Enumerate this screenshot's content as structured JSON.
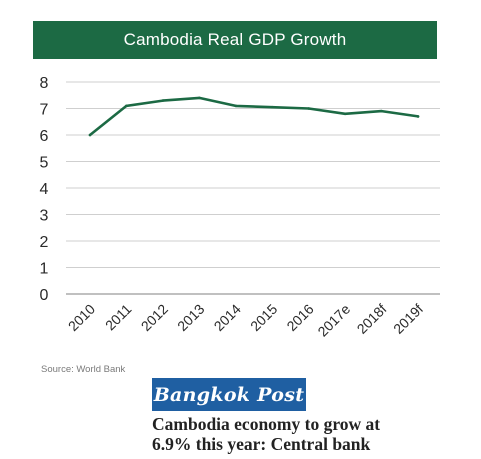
{
  "colors": {
    "title_bar": "#1c6a44",
    "line": "#1c6a44",
    "grid": "#cfcfcf",
    "logo_background": "#1f5fa2"
  },
  "chart_data": {
    "type": "line",
    "title": "Cambodia Real GDP Growth",
    "xlabel": "",
    "ylabel": "",
    "categories": [
      "2010",
      "2011",
      "2012",
      "2013",
      "2014",
      "2015",
      "2016",
      "2017e",
      "2018f",
      "2019f"
    ],
    "series": [
      {
        "values": [
          6.0,
          7.1,
          7.3,
          7.4,
          7.1,
          7.05,
          7.0,
          6.8,
          6.9,
          6.7
        ]
      }
    ],
    "ylim": [
      0,
      8
    ],
    "yticks": [
      "0",
      "1",
      "2",
      "3",
      "4",
      "5",
      "6",
      "7",
      "8"
    ],
    "grid": true
  },
  "source": "Source: World Bank",
  "logo": {
    "text": "Bangkok Post"
  },
  "headline": {
    "line1": "Cambodia economy to grow at",
    "line2": "6.9% this year: Central bank"
  }
}
